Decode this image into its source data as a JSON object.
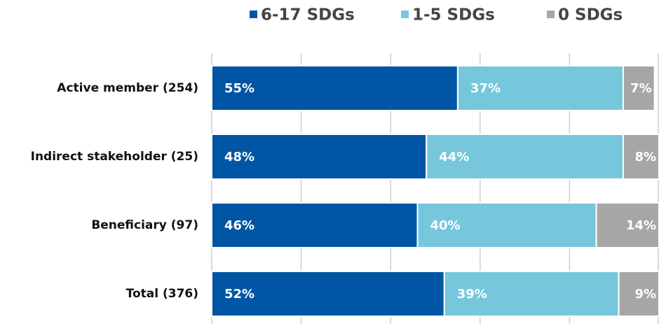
{
  "chart_data": {
    "type": "stacked_bar_horizontal",
    "categories": [
      "Active member (254)",
      "Indirect stakeholder (25)",
      "Beneficiary (97)",
      "Total (376)"
    ],
    "series": [
      {
        "name": "6-17 SDGs",
        "color": "#0055a4",
        "values": [
          55,
          48,
          46,
          52
        ],
        "value_labels": [
          "55%",
          "48%",
          "46%",
          "52%"
        ]
      },
      {
        "name": "1-5 SDGs",
        "color": "#76c7dc",
        "values": [
          37,
          44,
          40,
          39
        ],
        "value_labels": [
          "37%",
          "44%",
          "40%",
          "39%"
        ]
      },
      {
        "name": "0 SDGs",
        "color": "#a6a6a6",
        "values": [
          7,
          8,
          14,
          9
        ],
        "value_labels": [
          "7%",
          "8%",
          "14%",
          "9%"
        ]
      }
    ],
    "xlim": [
      0,
      100
    ],
    "xticks": [
      0,
      20,
      40,
      60,
      80,
      100
    ],
    "grid": true,
    "legend": "top"
  }
}
